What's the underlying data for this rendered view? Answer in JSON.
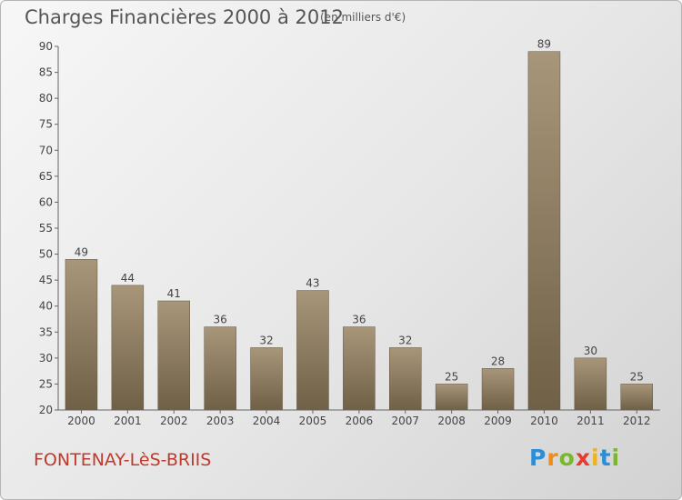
{
  "header": {
    "title": "Charges Financières 2000 à 2012",
    "unit": "(en milliers d'€)"
  },
  "footer": {
    "place": "FONTENAY-LèS-BRIIS",
    "logo": [
      {
        "ch": "P",
        "color": "#2b8ed6"
      },
      {
        "ch": "r",
        "color": "#f08c1a"
      },
      {
        "ch": "o",
        "color": "#79b82a"
      },
      {
        "ch": "x",
        "color": "#e63b2e"
      },
      {
        "ch": "i",
        "color": "#f0b418"
      },
      {
        "ch": "t",
        "color": "#2b8ed6"
      },
      {
        "ch": "i",
        "color": "#79b82a"
      }
    ]
  },
  "chart_data": {
    "type": "bar",
    "title": "Charges Financières 2000 à 2012",
    "subtitle": "(en milliers d'€)",
    "categories": [
      "2000",
      "2001",
      "2002",
      "2003",
      "2004",
      "2005",
      "2006",
      "2007",
      "2008",
      "2009",
      "2010",
      "2011",
      "2012"
    ],
    "values": [
      49,
      44,
      41,
      36,
      32,
      43,
      36,
      32,
      25,
      28,
      89,
      30,
      25
    ],
    "ylim": [
      20,
      90
    ],
    "yticks": [
      20,
      25,
      30,
      35,
      40,
      45,
      50,
      55,
      60,
      65,
      70,
      75,
      80,
      85,
      90
    ],
    "grid": false,
    "bar_color": "#8b7a5c"
  }
}
